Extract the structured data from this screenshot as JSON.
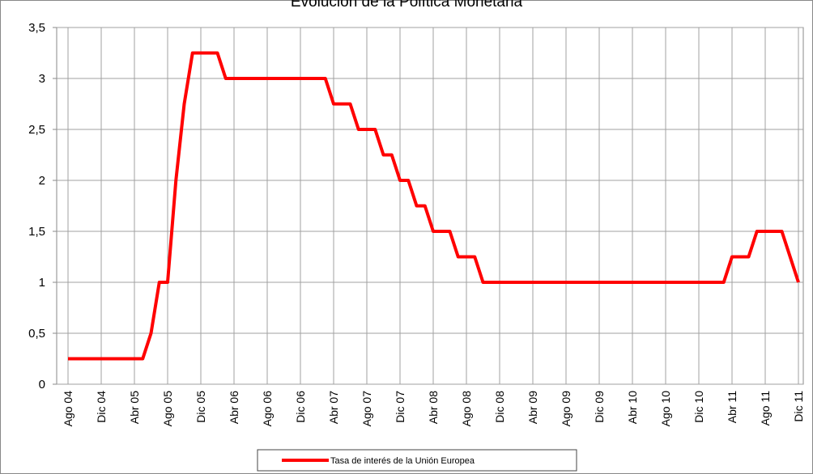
{
  "chart_data": {
    "type": "line",
    "title": "Evolución de la Política Monetaria",
    "categories": [
      "Ago 04",
      null,
      null,
      null,
      "Dic 04",
      null,
      null,
      null,
      "Abr 05",
      null,
      null,
      null,
      "Ago 05",
      null,
      null,
      null,
      "Dic 05",
      null,
      null,
      null,
      "Abr 06",
      null,
      null,
      null,
      "Ago 06",
      null,
      null,
      null,
      "Dic 06",
      null,
      null,
      null,
      "Abr 07",
      null,
      null,
      null,
      "Ago 07",
      null,
      null,
      null,
      "Dic 07",
      null,
      null,
      null,
      "Abr 08",
      null,
      null,
      null,
      "Ago 08",
      null,
      null,
      null,
      "Dic 08",
      null,
      null,
      null,
      "Abr 09",
      null,
      null,
      null,
      "Ago 09",
      null,
      null,
      null,
      "Dic 09",
      null,
      null,
      null,
      "Abr 10",
      null,
      null,
      null,
      "Ago 10",
      null,
      null,
      null,
      "Dic 10",
      null,
      null,
      null,
      "Abr 11",
      null,
      null,
      null,
      "Ago 11",
      null,
      null,
      null,
      "Dic 11"
    ],
    "series": [
      {
        "name": "Tasa de interés de la Unión Europea",
        "color": "#ff0000",
        "values": [
          0.25,
          0.25,
          0.25,
          0.25,
          0.25,
          0.25,
          0.25,
          0.25,
          0.25,
          0.25,
          0.5,
          1,
          1,
          2,
          2.75,
          3.25,
          3.25,
          3.25,
          3.25,
          3,
          3,
          3,
          3,
          3,
          3,
          3,
          3,
          3,
          3,
          3,
          3,
          3,
          2.75,
          2.75,
          2.75,
          2.5,
          2.5,
          2.5,
          2.25,
          2.25,
          2,
          2,
          1.75,
          1.75,
          1.5,
          1.5,
          1.5,
          1.25,
          1.25,
          1.25,
          1,
          1,
          1,
          1,
          1,
          1,
          1,
          1,
          1,
          1,
          1,
          1,
          1,
          1,
          1,
          1,
          1,
          1,
          1,
          1,
          1,
          1,
          1,
          1,
          1,
          1,
          1,
          1,
          1,
          1,
          1.25,
          1.25,
          1.25,
          1.5,
          1.5,
          1.5,
          1.5,
          1.25,
          1
        ]
      }
    ],
    "ylim": [
      0,
      3.5
    ],
    "yticks": [
      0,
      {
        "value": 0.5,
        "label": "0,5"
      },
      1,
      {
        "value": 1.5,
        "label": "1,5"
      },
      2,
      {
        "value": 2.5,
        "label": "2,5"
      },
      3,
      {
        "value": 3.5,
        "label": "3,5"
      }
    ],
    "grid": true,
    "legend": "bottom"
  }
}
